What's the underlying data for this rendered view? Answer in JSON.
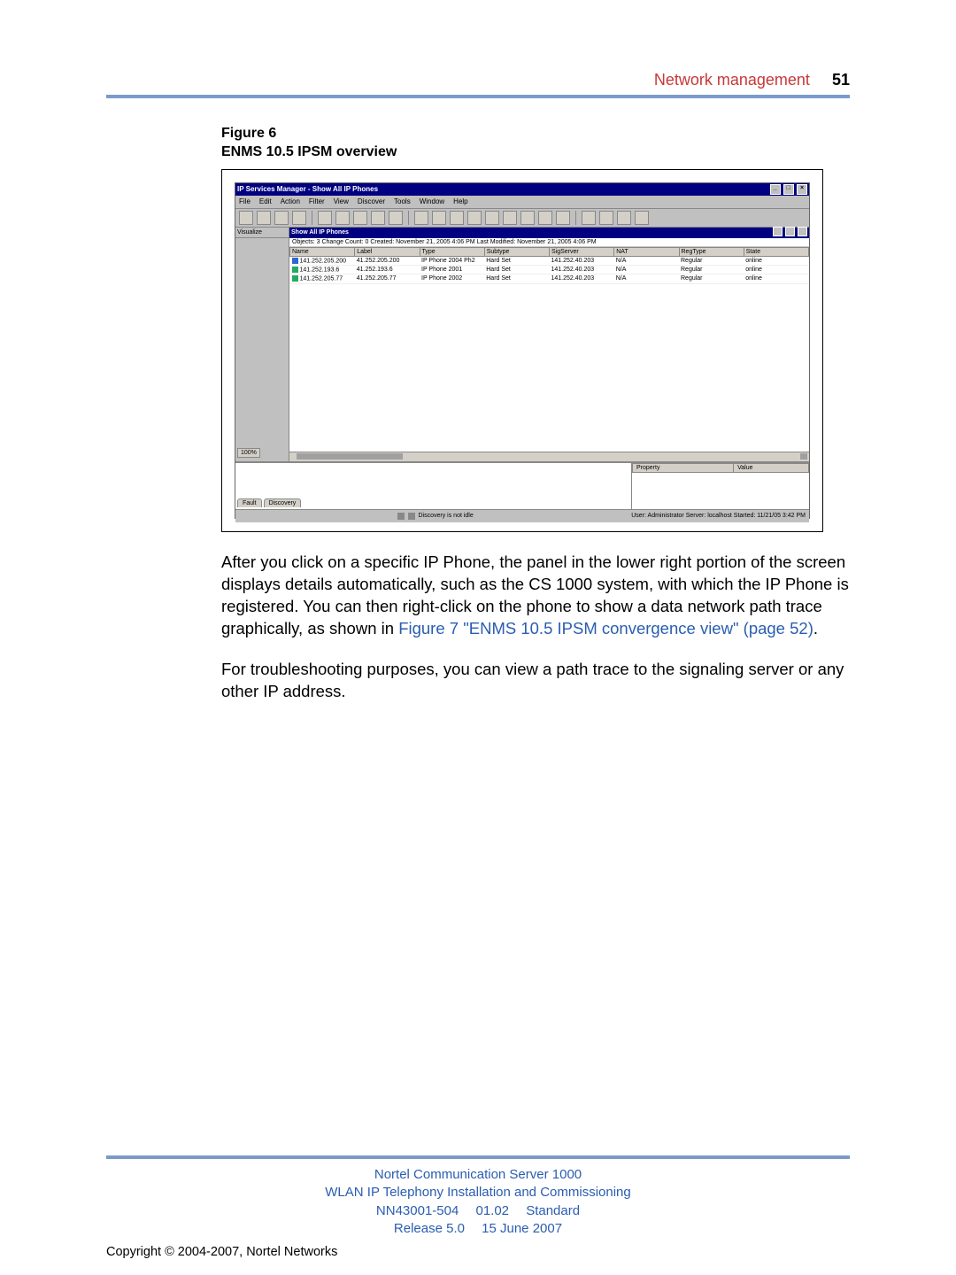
{
  "header": {
    "section": "Network management",
    "page_number": "51"
  },
  "figure": {
    "number": "Figure 6",
    "title": "ENMS 10.5 IPSM overview"
  },
  "app": {
    "title": "IP Services Manager - Show All IP Phones",
    "menu": [
      "File",
      "Edit",
      "Action",
      "Filter",
      "View",
      "Discover",
      "Tools",
      "Window",
      "Help"
    ],
    "left_pane": {
      "top_label": "Visualize",
      "zoom": "100%"
    },
    "sub_title": "Show All IP Phones",
    "info_line": "Objects: 3 Change Count: 0 Created: November 21, 2005 4:06 PM Last Modified: November 21, 2005 4:06 PM",
    "columns": [
      "Name",
      "Label",
      "Type",
      "Subtype",
      "SigServer",
      "NAT",
      "RegType",
      "State"
    ],
    "rows": [
      [
        "141.252.205.200",
        "41.252.205.200",
        "IP Phone 2004 Ph2",
        "Hard Set",
        "141.252.40.203",
        "N/A",
        "Regular",
        "online"
      ],
      [
        "141.252.193.6",
        "41.252.193.6",
        "IP Phone 2001",
        "Hard Set",
        "141.252.40.203",
        "N/A",
        "Regular",
        "online"
      ],
      [
        "141.252.205.77",
        "41.252.205.77",
        "IP Phone 2002",
        "Hard Set",
        "141.252.40.203",
        "N/A",
        "Regular",
        "online"
      ]
    ],
    "tabs": [
      "Fault",
      "Discovery"
    ],
    "prop_headers": [
      "Property",
      "Value"
    ],
    "status_center": "Discovery is not idle",
    "status_right": "User: Administrator   Server: localhost   Started: 11/21/05 3:42 PM"
  },
  "paragraphs": {
    "p1_a": "After you click on a specific IP Phone, the panel in the lower right portion of the screen displays details automatically, such as the CS 1000 system, with which the IP Phone is registered. You can then right-click on the phone to show a data network path trace graphically, as shown in ",
    "p1_link": "Figure 7 \"ENMS 10.5 IPSM convergence view\" (page 52)",
    "p1_b": ".",
    "p2": "For troubleshooting purposes, you can view a path trace to the signaling server or any other IP address."
  },
  "footer": {
    "l1": "Nortel Communication Server 1000",
    "l2": "WLAN IP Telephony Installation and Commissioning",
    "l3": "NN43001-504  01.02  Standard",
    "l4": "Release 5.0  15 June 2007",
    "copyright": "Copyright © 2004-2007, Nortel Networks"
  },
  "colors": {
    "rule": "#7a9bc9",
    "section_text": "#c83737",
    "link": "#2a5db0"
  }
}
